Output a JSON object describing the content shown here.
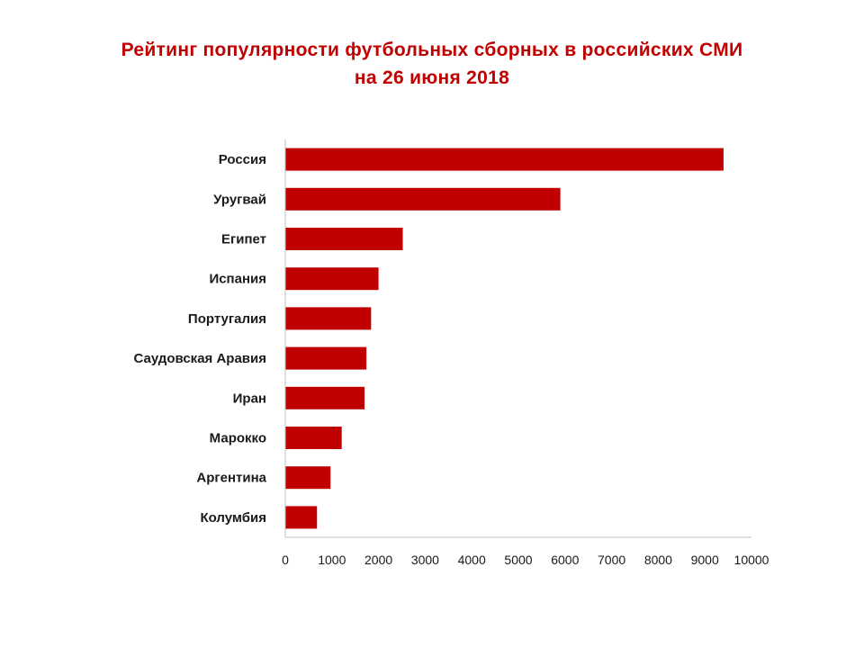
{
  "title_lines": [
    "Рейтинг популярности футбольных сборных  в российских СМИ",
    "на 26 июня 2018"
  ],
  "colors": {
    "bar": "#c00000",
    "title": "#c00000",
    "axis": "#bfbfbf"
  },
  "chart_data": {
    "type": "bar",
    "orientation": "horizontal",
    "title": "Рейтинг популярности футбольных сборных  в российских СМИ на 26 июня 2018",
    "categories": [
      "Россия",
      "Уругвай",
      "Египет",
      "Испания",
      "Португалия",
      "Саудовская  Аравия",
      "Иран",
      "Марокко",
      "Аргентина",
      "Колумбия"
    ],
    "values": [
      9400,
      5900,
      2520,
      2000,
      1840,
      1740,
      1700,
      1210,
      970,
      680
    ],
    "xlim": [
      0,
      10000
    ],
    "xticks": [
      0,
      1000,
      2000,
      3000,
      4000,
      5000,
      6000,
      7000,
      8000,
      9000,
      10000
    ],
    "xlabel": "",
    "ylabel": "",
    "grid": false,
    "legend": "none"
  }
}
